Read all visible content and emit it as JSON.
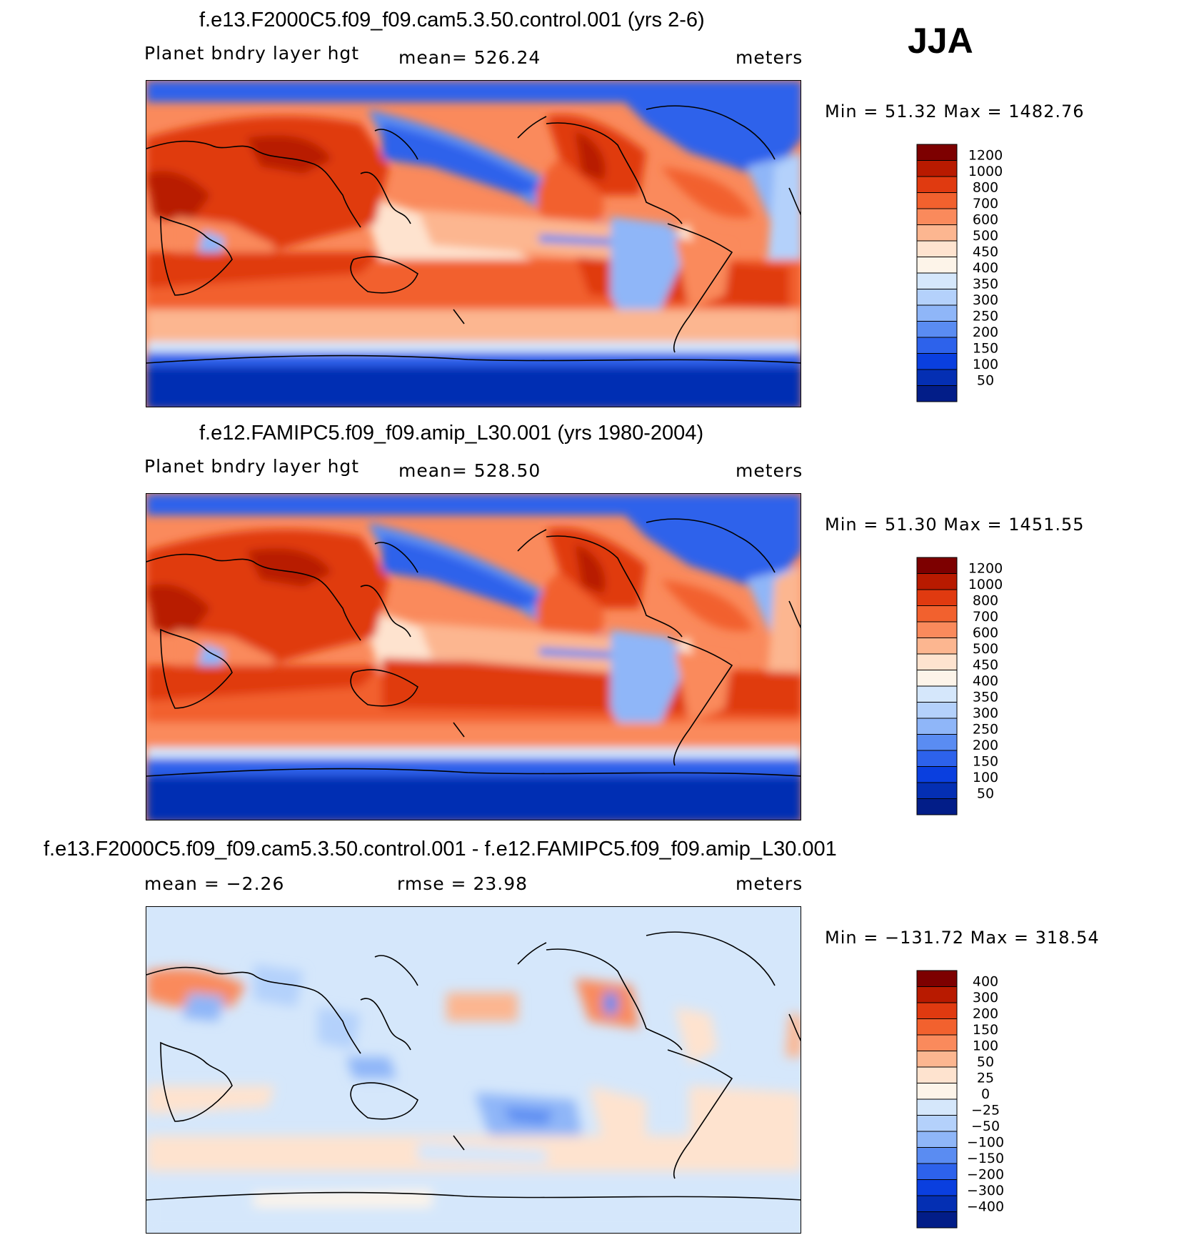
{
  "season": "JJA",
  "panels": [
    {
      "title": "f.e13.F2000C5.f09_f09.cam5.3.50.control.001 (yrs 2-6)",
      "left_label": "Planet bndry layer hgt",
      "center_label": "mean= 526.24",
      "right_label": "meters",
      "minmax": "Min =   51.32 Max = 1482.76",
      "colorbar_labels": [
        "1200",
        "1000",
        "800",
        "700",
        "600",
        "500",
        "450",
        "400",
        "350",
        "300",
        "250",
        "200",
        "150",
        "100",
        "50"
      ],
      "colors": [
        "#7d0000",
        "#b81a00",
        "#e03a10",
        "#f2612e",
        "#fa8a5c",
        "#fcb690",
        "#fee3cf",
        "#fdf4e9",
        "#d5e7fb",
        "#b4d1fb",
        "#8fb6f8",
        "#5a8cf2",
        "#2d62eb",
        "#0a3fdf",
        "#042fb3",
        "#021d88"
      ]
    },
    {
      "title": "f.e12.FAMIPC5.f09_f09.amip_L30.001 (yrs 1980-2004)",
      "left_label": "Planet bndry layer hgt",
      "center_label": "mean= 528.50",
      "right_label": "meters",
      "minmax": "Min =   51.30 Max = 1451.55",
      "colorbar_labels": [
        "1200",
        "1000",
        "800",
        "700",
        "600",
        "500",
        "450",
        "400",
        "350",
        "300",
        "250",
        "200",
        "150",
        "100",
        "50"
      ],
      "colors": [
        "#7d0000",
        "#b81a00",
        "#e03a10",
        "#f2612e",
        "#fa8a5c",
        "#fcb690",
        "#fee3cf",
        "#fdf4e9",
        "#d5e7fb",
        "#b4d1fb",
        "#8fb6f8",
        "#5a8cf2",
        "#2d62eb",
        "#0a3fdf",
        "#042fb3",
        "#021d88"
      ]
    },
    {
      "title": "f.e13.F2000C5.f09_f09.cam5.3.50.control.001 - f.e12.FAMIPC5.f09_f09.amip_L30.001",
      "left_label": "mean =   −2.26",
      "center_label": "rmse =   23.98",
      "right_label": "meters",
      "minmax": "Min = −131.72 Max = 318.54",
      "colorbar_labels": [
        "400",
        "300",
        "200",
        "150",
        "100",
        "50",
        "25",
        "0",
        "−25",
        "−50",
        "−100",
        "−150",
        "−200",
        "−300",
        "−400"
      ],
      "colors": [
        "#7d0000",
        "#b81a00",
        "#e03a10",
        "#f2612e",
        "#fa8a5c",
        "#fcb690",
        "#fee3cf",
        "#fdf4e9",
        "#d5e7fb",
        "#b4d1fb",
        "#8fb6f8",
        "#5a8cf2",
        "#2d62eb",
        "#0a3fdf",
        "#042fb3",
        "#021d88"
      ]
    }
  ]
}
